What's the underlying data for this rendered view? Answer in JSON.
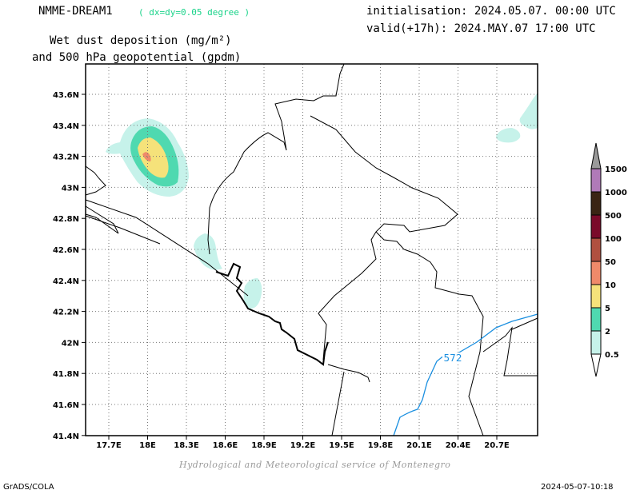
{
  "header": {
    "model": "NMME-DREAM1",
    "resolution": "( dx=dy=0.05 degree )",
    "init": "initialisation: 2024.05.07. 00:00 UTC",
    "valid": "valid(+17h): 2024.MAY.07 17:00 UTC",
    "title_line1": "Wet dust deposition (mg/m²)",
    "title_line2": "and 500 hPa geopotential (gpdm)"
  },
  "map": {
    "lat_labels": [
      "43.6N",
      "43.4N",
      "43.2N",
      "43N",
      "42.8N",
      "42.6N",
      "42.4N",
      "42.2N",
      "42N",
      "41.8N",
      "41.6N",
      "41.4N"
    ],
    "lon_labels": [
      "17.7E",
      "18E",
      "18.3E",
      "18.6E",
      "18.9E",
      "19.2E",
      "19.5E",
      "19.8E",
      "20.1E",
      "20.4E",
      "20.7E"
    ],
    "contour_label": "572",
    "contour_color": "#1a8fe0",
    "grid": true
  },
  "legend": {
    "levels": [
      "1500",
      "1000",
      "500",
      "100",
      "50",
      "10",
      "5",
      "2",
      "0.5"
    ],
    "colors": [
      "#b07ab8",
      "#3a2414",
      "#7a0a2a",
      "#b05040",
      "#ef8a6a",
      "#f5e27a",
      "#4fd9b0",
      "#c6f2ea"
    ]
  },
  "footer": {
    "credit": "Hydrological and Meteorological service of Montenegro",
    "left": "GrADS/COLA",
    "right": "2024-05-07-10:18"
  }
}
